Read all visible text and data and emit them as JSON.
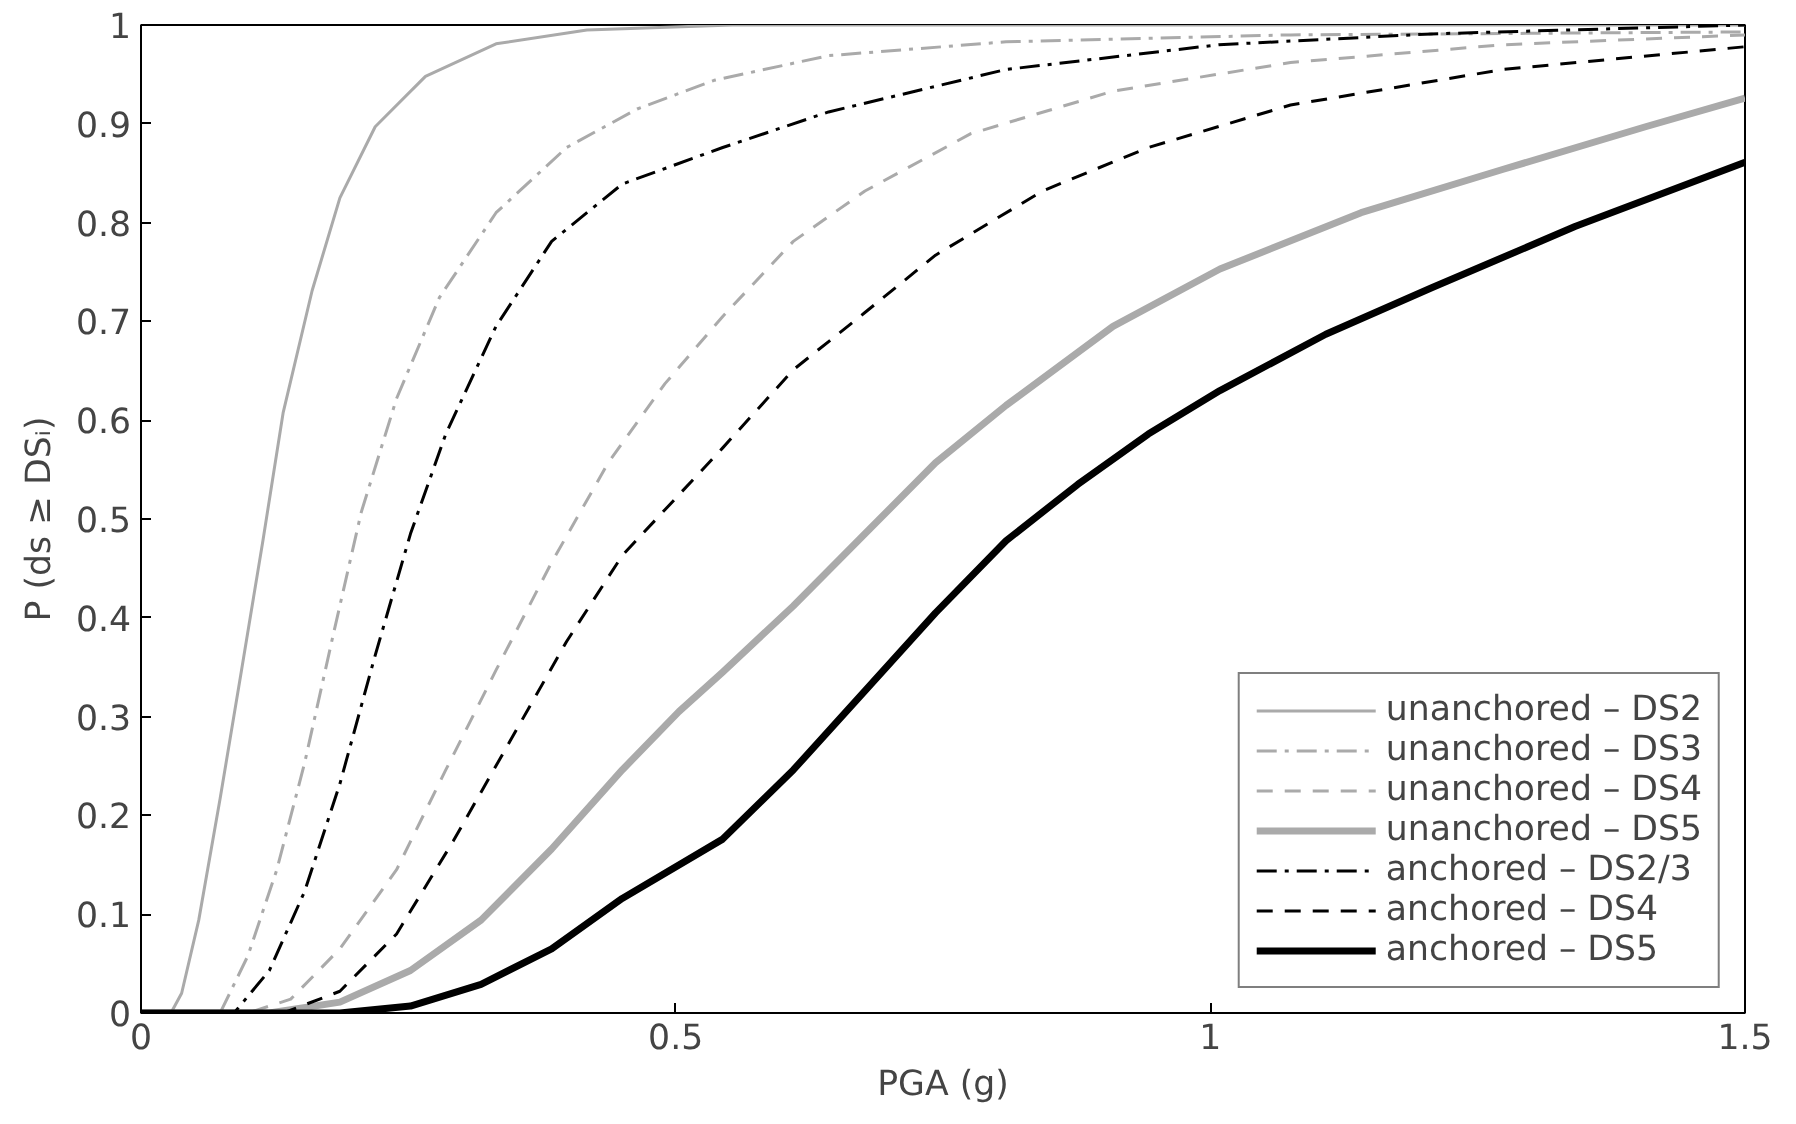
{
  "chart_data": {
    "type": "line",
    "xlabel": "PGA (g)",
    "ylabel": "P (ds ≥ DSᵢ)",
    "xlim": [
      0,
      1.5
    ],
    "ylim": [
      0,
      1
    ],
    "xticks": [
      0,
      0.5,
      1,
      1.5
    ],
    "yticks": [
      0,
      0.1,
      0.2,
      0.3,
      0.4,
      0.5,
      0.6,
      0.7,
      0.8,
      0.9,
      1
    ],
    "grid": false,
    "legend": "bottom right",
    "series": [
      {
        "name": "unanchored – DS2",
        "color": "#aaaaaa",
        "line_style": "solid",
        "x": [
          0,
          0.028,
          0.038,
          0.054,
          0.074,
          0.094,
          0.114,
          0.133,
          0.16,
          0.186,
          0.219,
          0.266,
          0.332,
          0.417,
          0.553,
          1.0,
          1.5
        ],
        "values": [
          0,
          0,
          0.02,
          0.094,
          0.217,
          0.347,
          0.478,
          0.608,
          0.731,
          0.825,
          0.897,
          0.948,
          0.981,
          0.995,
          1.0,
          1.0,
          1.0
        ]
      },
      {
        "name": "unanchored – DS3",
        "color": "#aaaaaa",
        "line_style": "dashdot",
        "x": [
          0,
          0.074,
          0.1,
          0.127,
          0.153,
          0.18,
          0.206,
          0.239,
          0.279,
          0.332,
          0.398,
          0.464,
          0.536,
          0.643,
          0.809,
          1.075,
          1.5
        ],
        "values": [
          0,
          0,
          0.058,
          0.145,
          0.253,
          0.384,
          0.507,
          0.622,
          0.724,
          0.81,
          0.876,
          0.915,
          0.944,
          0.969,
          0.983,
          0.99,
          0.993
        ]
      },
      {
        "name": "unanchored – DS4",
        "color": "#aaaaaa",
        "line_style": "dashed",
        "x": [
          0,
          0.1,
          0.14,
          0.186,
          0.239,
          0.285,
          0.332,
          0.384,
          0.437,
          0.49,
          0.544,
          0.61,
          0.677,
          0.776,
          0.909,
          1.075,
          1.274,
          1.5
        ],
        "values": [
          0,
          0,
          0.014,
          0.065,
          0.145,
          0.246,
          0.347,
          0.456,
          0.557,
          0.637,
          0.705,
          0.781,
          0.832,
          0.89,
          0.933,
          0.962,
          0.98,
          0.99
        ]
      },
      {
        "name": "unanchored – DS5",
        "color": "#aaaaaa",
        "line_style": "solid",
        "x": [
          0,
          0.12,
          0.186,
          0.252,
          0.318,
          0.384,
          0.45,
          0.503,
          0.544,
          0.61,
          0.677,
          0.743,
          0.809,
          0.909,
          1.009,
          1.141,
          1.274,
          1.407,
          1.5
        ],
        "values": [
          0,
          0,
          0.011,
          0.043,
          0.094,
          0.166,
          0.246,
          0.305,
          0.345,
          0.412,
          0.485,
          0.557,
          0.615,
          0.695,
          0.753,
          0.81,
          0.854,
          0.897,
          0.926
        ]
      },
      {
        "name": "anchored – DS2/3",
        "color": "#000000",
        "line_style": "dashdot",
        "x": [
          0,
          0.087,
          0.12,
          0.153,
          0.186,
          0.219,
          0.252,
          0.285,
          0.332,
          0.384,
          0.45,
          0.544,
          0.643,
          0.809,
          1.008,
          1.207,
          1.5
        ],
        "values": [
          0,
          0,
          0.043,
          0.123,
          0.232,
          0.362,
          0.485,
          0.586,
          0.695,
          0.781,
          0.839,
          0.876,
          0.912,
          0.955,
          0.98,
          0.991,
          1.0
        ]
      },
      {
        "name": "anchored – DS4",
        "color": "#000000",
        "line_style": "dashed",
        "x": [
          0,
          0.133,
          0.186,
          0.239,
          0.292,
          0.345,
          0.398,
          0.45,
          0.544,
          0.61,
          0.677,
          0.743,
          0.843,
          0.942,
          1.075,
          1.274,
          1.5
        ],
        "values": [
          0,
          0,
          0.022,
          0.08,
          0.174,
          0.275,
          0.376,
          0.463,
          0.572,
          0.651,
          0.709,
          0.767,
          0.832,
          0.876,
          0.919,
          0.955,
          0.978
        ]
      },
      {
        "name": "anchored – DS5",
        "color": "#000000",
        "line_style": "solid",
        "x": [
          0,
          0.186,
          0.252,
          0.318,
          0.384,
          0.45,
          0.544,
          0.61,
          0.677,
          0.743,
          0.809,
          0.876,
          0.942,
          1.009,
          1.108,
          1.207,
          1.341,
          1.5
        ],
        "values": [
          0,
          0,
          0.007,
          0.029,
          0.065,
          0.116,
          0.176,
          0.246,
          0.326,
          0.405,
          0.478,
          0.535,
          0.586,
          0.63,
          0.687,
          0.734,
          0.796,
          0.861
        ]
      }
    ]
  }
}
